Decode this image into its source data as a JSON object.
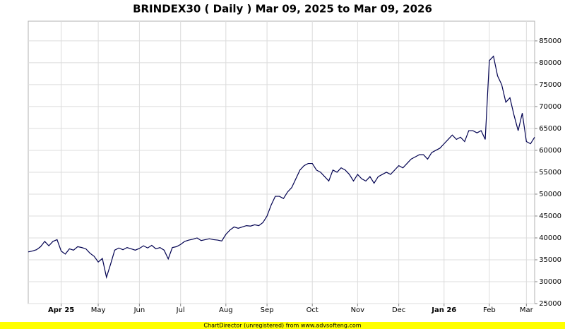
{
  "chart_data": {
    "type": "line",
    "title": "BRINDEX30 ( Daily ) Mar 09, 2025 to Mar 09, 2026",
    "footer": "ChartDirector (unregistered) from www.advsofteng.com",
    "categories": [
      null,
      null,
      null,
      null,
      null,
      null,
      null,
      null,
      "Apr 25",
      null,
      null,
      null,
      null,
      null,
      null,
      null,
      null,
      "May",
      null,
      null,
      null,
      null,
      null,
      null,
      null,
      null,
      null,
      "Jun",
      null,
      null,
      null,
      null,
      null,
      null,
      null,
      null,
      null,
      "Jul",
      null,
      null,
      null,
      null,
      null,
      null,
      null,
      null,
      null,
      null,
      "Aug",
      null,
      null,
      null,
      null,
      null,
      null,
      null,
      null,
      null,
      "Sep",
      null,
      null,
      null,
      null,
      null,
      null,
      null,
      null,
      null,
      null,
      "Oct",
      null,
      null,
      null,
      null,
      null,
      null,
      null,
      null,
      null,
      null,
      "Nov",
      null,
      null,
      null,
      null,
      null,
      null,
      null,
      null,
      null,
      "Dec",
      null,
      null,
      null,
      null,
      null,
      null,
      null,
      null,
      null,
      null,
      "Jan 26",
      null,
      null,
      null,
      null,
      null,
      null,
      null,
      null,
      null,
      null,
      "Feb",
      null,
      null,
      null,
      null,
      null,
      null,
      null,
      null,
      "Mar",
      null,
      null
    ],
    "values": [
      36800,
      37000,
      37300,
      38000,
      39200,
      38200,
      39200,
      39600,
      37000,
      36300,
      37500,
      37200,
      38000,
      37800,
      37500,
      36500,
      35800,
      34500,
      35300,
      31000,
      34000,
      37200,
      37700,
      37300,
      37800,
      37500,
      37200,
      37600,
      38200,
      37700,
      38300,
      37500,
      37800,
      37200,
      35200,
      37800,
      38000,
      38500,
      39200,
      39500,
      39700,
      40000,
      39400,
      39600,
      39800,
      39600,
      39500,
      39300,
      40800,
      41800,
      42500,
      42200,
      42500,
      42800,
      42700,
      43000,
      42800,
      43500,
      45000,
      47500,
      49500,
      49500,
      49000,
      50500,
      51500,
      53500,
      55500,
      56500,
      57000,
      57000,
      55500,
      55000,
      54000,
      53000,
      55500,
      55000,
      56000,
      55500,
      54500,
      53000,
      54500,
      53500,
      53000,
      54000,
      52500,
      54000,
      54500,
      55000,
      54500,
      55500,
      56500,
      56000,
      57000,
      58000,
      58500,
      59000,
      59000,
      58000,
      59500,
      60000,
      60500,
      61500,
      62500,
      63500,
      62500,
      63000,
      62000,
      64500,
      64500,
      64000,
      64500,
      62500,
      80500,
      81500,
      77000,
      75000,
      71000,
      72000,
      68000,
      64500,
      68500,
      62000,
      61500,
      63000
    ],
    "color": "#000050",
    "ylim": [
      25000,
      89500
    ],
    "yticks": [
      25000,
      30000,
      35000,
      40000,
      45000,
      50000,
      55000,
      60000,
      65000,
      70000,
      75000,
      80000,
      85000
    ],
    "grid": true
  }
}
